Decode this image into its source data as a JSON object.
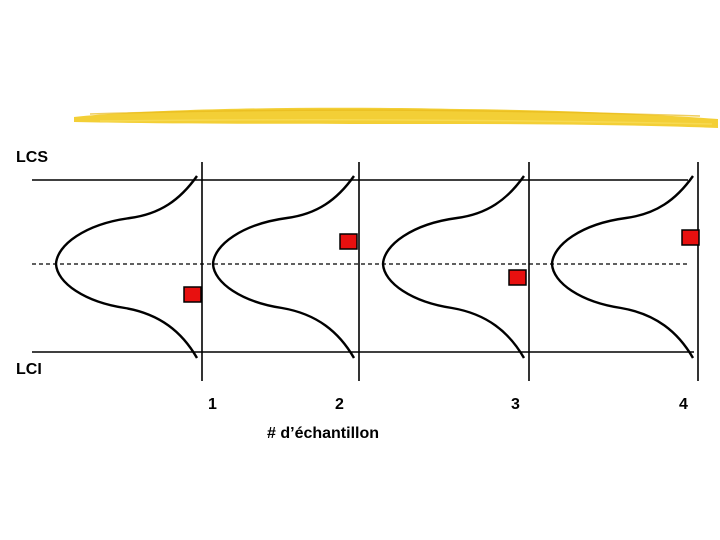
{
  "labels": {
    "upper_limit": "LCS",
    "lower_limit": "LCI",
    "x_axis": "# d’échantillon"
  },
  "samples": [
    {
      "number": "1",
      "position": "below_center"
    },
    {
      "number": "2",
      "position": "above_center"
    },
    {
      "number": "3",
      "position": "below_center"
    },
    {
      "number": "4",
      "position": "above_center"
    }
  ],
  "colors": {
    "title_bar": "#f2cc2b",
    "marker_fill": "#e8100f",
    "line": "#000000"
  }
}
